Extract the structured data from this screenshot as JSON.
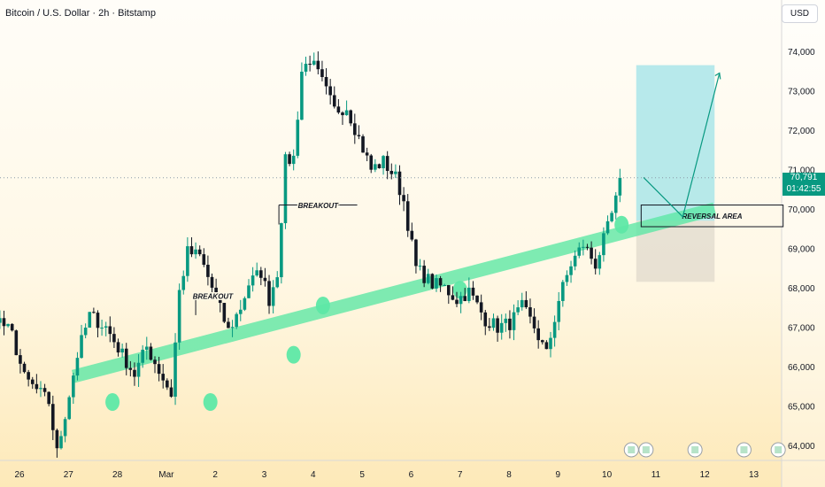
{
  "header": {
    "symbol_title": "Bitcoin / U.S. Dollar · 2h · Bitstamp",
    "currency": "USD"
  },
  "price_tag": {
    "price": "70,791",
    "countdown": "01:42:55"
  },
  "colors": {
    "up": "#089981",
    "down": "#131722",
    "channel": "#5ee8a6",
    "target_box": "#9fe3e8",
    "stop_box": "#d8d2c6",
    "dotted_line": "#8a99a8"
  },
  "annotations": {
    "breakout_1": "BREAKOUT",
    "breakout_2": "BREAKOUT",
    "reversal": "REVERSAL AREA"
  },
  "chart_data": {
    "type": "candlestick",
    "title": "",
    "xlabel": "",
    "ylabel": "",
    "ylim": [
      63800,
      74400
    ],
    "y_ticks": [
      "74,000",
      "73,000",
      "72,000",
      "71,000",
      "70,000",
      "69,000",
      "68,000",
      "67,000",
      "66,000",
      "65,000",
      "64,000"
    ],
    "y_tick_values": [
      74000,
      73000,
      72000,
      71000,
      70000,
      69000,
      68000,
      67000,
      66000,
      65000,
      64000
    ],
    "x_ticks": [
      "26",
      "27",
      "28",
      "Mar",
      "2",
      "3",
      "4",
      "5",
      "6",
      "7",
      "8",
      "9",
      "10",
      "11",
      "12",
      "13"
    ],
    "x_tick_days": [
      26,
      27,
      28,
      29,
      30,
      31,
      32,
      33,
      34,
      35,
      36,
      37,
      38,
      39,
      40,
      41
    ],
    "candles_per_day": 12,
    "grid": false,
    "path_anchors": [
      [
        0,
        67000
      ],
      [
        3,
        69000
      ],
      [
        7,
        68600
      ],
      [
        10,
        68100
      ],
      [
        16,
        67400
      ],
      [
        21,
        66800
      ],
      [
        24,
        65700
      ],
      [
        28,
        65300
      ],
      [
        30,
        65100
      ],
      [
        32,
        63800
      ],
      [
        34,
        64800
      ],
      [
        37,
        66300
      ],
      [
        40,
        67300
      ],
      [
        44,
        67000
      ],
      [
        48,
        66300
      ],
      [
        51,
        65800
      ],
      [
        54,
        66500
      ],
      [
        56,
        66100
      ],
      [
        60,
        65300
      ],
      [
        62,
        67900
      ],
      [
        64,
        68900
      ],
      [
        67,
        68800
      ],
      [
        70,
        68000
      ],
      [
        74,
        66900
      ],
      [
        77,
        67500
      ],
      [
        79,
        68100
      ],
      [
        82,
        68400
      ],
      [
        84,
        67700
      ],
      [
        86,
        68400
      ],
      [
        88,
        71200
      ],
      [
        90,
        71300
      ],
      [
        92,
        73500
      ],
      [
        94,
        73800
      ],
      [
        97,
        73200
      ],
      [
        100,
        72500
      ],
      [
        103,
        72600
      ],
      [
        106,
        71800
      ],
      [
        109,
        71000
      ],
      [
        112,
        71200
      ],
      [
        115,
        70800
      ],
      [
        117,
        70200
      ],
      [
        120,
        68500
      ],
      [
        124,
        68100
      ],
      [
        127,
        68000
      ],
      [
        130,
        67700
      ],
      [
        133,
        67900
      ],
      [
        137,
        67200
      ],
      [
        140,
        67000
      ],
      [
        143,
        67100
      ],
      [
        146,
        67500
      ],
      [
        149,
        67000
      ],
      [
        152,
        66300
      ],
      [
        155,
        67700
      ],
      [
        158,
        68600
      ],
      [
        161,
        69100
      ],
      [
        164,
        68600
      ],
      [
        167,
        69500
      ],
      [
        169,
        70200
      ],
      [
        170,
        70791
      ]
    ],
    "channel": {
      "start": [
        27.1,
        65750
      ],
      "end": [
        40.2,
        70000
      ]
    },
    "breakouts": [
      {
        "label": "BREAKOUT",
        "price": 67800,
        "from_day": 29.6,
        "to_day": 30.3
      },
      {
        "label": "BREAKOUT",
        "price": 70100,
        "from_day": 31.3,
        "to_day": 32.9
      }
    ],
    "touch_points": [
      {
        "day": 27.9,
        "price": 65100
      },
      {
        "day": 29.9,
        "price": 65100
      },
      {
        "day": 31.6,
        "price": 66300
      },
      {
        "day": 32.2,
        "price": 67550
      },
      {
        "day": 35.0,
        "price": 67950
      },
      {
        "day": 38.3,
        "price": 69600
      }
    ],
    "projection": {
      "target_box": {
        "from_day": 38.6,
        "to_day": 40.2,
        "top": 73650,
        "bottom": 69700
      },
      "stop_box": {
        "from_day": 38.6,
        "to_day": 40.2,
        "top": 69700,
        "bottom": 68150
      },
      "reversal_area": {
        "from_day": 38.7,
        "to_day": 41.6,
        "top": 70100,
        "bottom": 69550
      },
      "arrow_path": [
        [
          38.75,
          70800
        ],
        [
          39.55,
          69800
        ],
        [
          40.3,
          73450
        ]
      ]
    },
    "last_price": 70791
  }
}
